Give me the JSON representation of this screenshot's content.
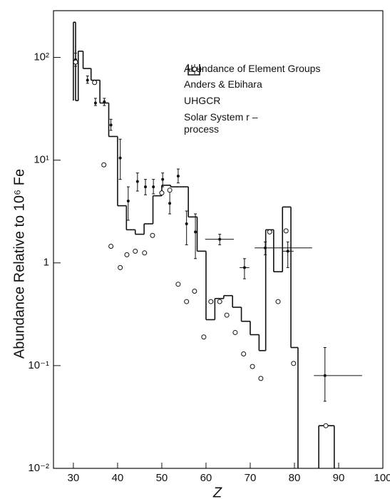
{
  "chart_data": {
    "type": "combo",
    "y_label": "Abundance Relative to 10⁶ Fe",
    "x_label": "Z",
    "legend_title": "Abundance of Element Groups",
    "xlim": [
      25.5,
      100
    ],
    "xticks": [
      30,
      40,
      50,
      60,
      70,
      80,
      90,
      100
    ],
    "ylim": [
      0.01,
      285
    ],
    "log_y": true,
    "yticks": [
      {
        "value": 0.01,
        "label": "10⁻²"
      },
      {
        "value": 0.1,
        "label": "10⁻¹"
      },
      1,
      {
        "value": 10,
        "label": "10¹"
      },
      {
        "value": 100,
        "label": "10²"
      }
    ],
    "series": [
      {
        "name": "Anders & Ebihara",
        "type": "step",
        "color": "#111111",
        "bins": [
          30,
          30.5,
          31.1,
          32.2,
          34,
          36,
          38,
          40,
          42,
          44,
          46,
          48,
          50,
          52,
          54,
          56,
          58,
          60,
          62,
          64,
          66,
          68,
          70,
          72,
          73.5,
          75.3,
          77.3,
          79.2,
          80.8,
          85.5,
          89
        ],
        "values": [
          220,
          38,
          115,
          78,
          60,
          36,
          17,
          3.6,
          2.1,
          1.9,
          2.4,
          4.5,
          5.7,
          5.5,
          5.5,
          2.8,
          1.3,
          0.28,
          0.45,
          0.48,
          0.37,
          0.27,
          0.2,
          0.14,
          2.1,
          0.82,
          3.5,
          0.15,
          null,
          0.026
        ]
      },
      {
        "name": "UHGCR",
        "type": "errorbar",
        "color": "#111111",
        "x": [
          30.5,
          33.2,
          35,
          37,
          38.5,
          40.6,
          42.4,
          44.5,
          46.3,
          48.1,
          50.2,
          51.8,
          53.7,
          55.6,
          57.6,
          63.1,
          68.7,
          73.4,
          78.5,
          86.9
        ],
        "values": [
          95,
          60,
          36,
          37,
          22,
          10.5,
          4,
          6.2,
          5.5,
          5.5,
          6.5,
          3.8,
          7,
          2.4,
          2,
          1.7,
          0.9,
          1.4,
          1.3,
          0.08
        ],
        "y_low": [
          82,
          56,
          34,
          34,
          19.5,
          6.5,
          2.6,
          5,
          4.6,
          4.7,
          5.5,
          3,
          6,
          1.5,
          1.1,
          1.5,
          0.7,
          1.2,
          0.9,
          0.045
        ],
        "y_high": [
          110,
          66,
          40,
          40,
          25,
          16,
          5.5,
          7.5,
          6.5,
          6.5,
          7.5,
          5,
          8.2,
          3.2,
          3,
          1.9,
          1.1,
          1.6,
          1.6,
          0.15
        ],
        "x_low": [
          null,
          null,
          null,
          null,
          null,
          null,
          null,
          null,
          null,
          null,
          null,
          null,
          null,
          null,
          null,
          59.8,
          67.6,
          71,
          77.4,
          84.4
        ],
        "x_high": [
          null,
          null,
          null,
          null,
          null,
          null,
          null,
          null,
          null,
          null,
          null,
          null,
          null,
          null,
          null,
          66.3,
          69.8,
          84,
          79.8,
          95.3
        ]
      },
      {
        "name": "Solar System r – process",
        "type": "scatter",
        "color": "#111111",
        "x": [
          30.5,
          34.8,
          36.9,
          38.5,
          40.6,
          42.1,
          44,
          46.1,
          47.9,
          50,
          51.8,
          53.7,
          55.6,
          57.4,
          59.5,
          61.1,
          63.1,
          64.7,
          66.6,
          68.5,
          70.5,
          72.4,
          74.4,
          76.3,
          78.1,
          79.8,
          87.1
        ],
        "values": [
          90,
          57,
          9,
          1.45,
          0.9,
          1.2,
          1.3,
          1.25,
          1.85,
          4.8,
          5.1,
          0.62,
          0.42,
          0.53,
          0.19,
          0.42,
          0.42,
          0.31,
          0.21,
          0.13,
          0.098,
          0.075,
          2,
          0.42,
          2.05,
          0.105,
          0.026
        ]
      }
    ]
  }
}
